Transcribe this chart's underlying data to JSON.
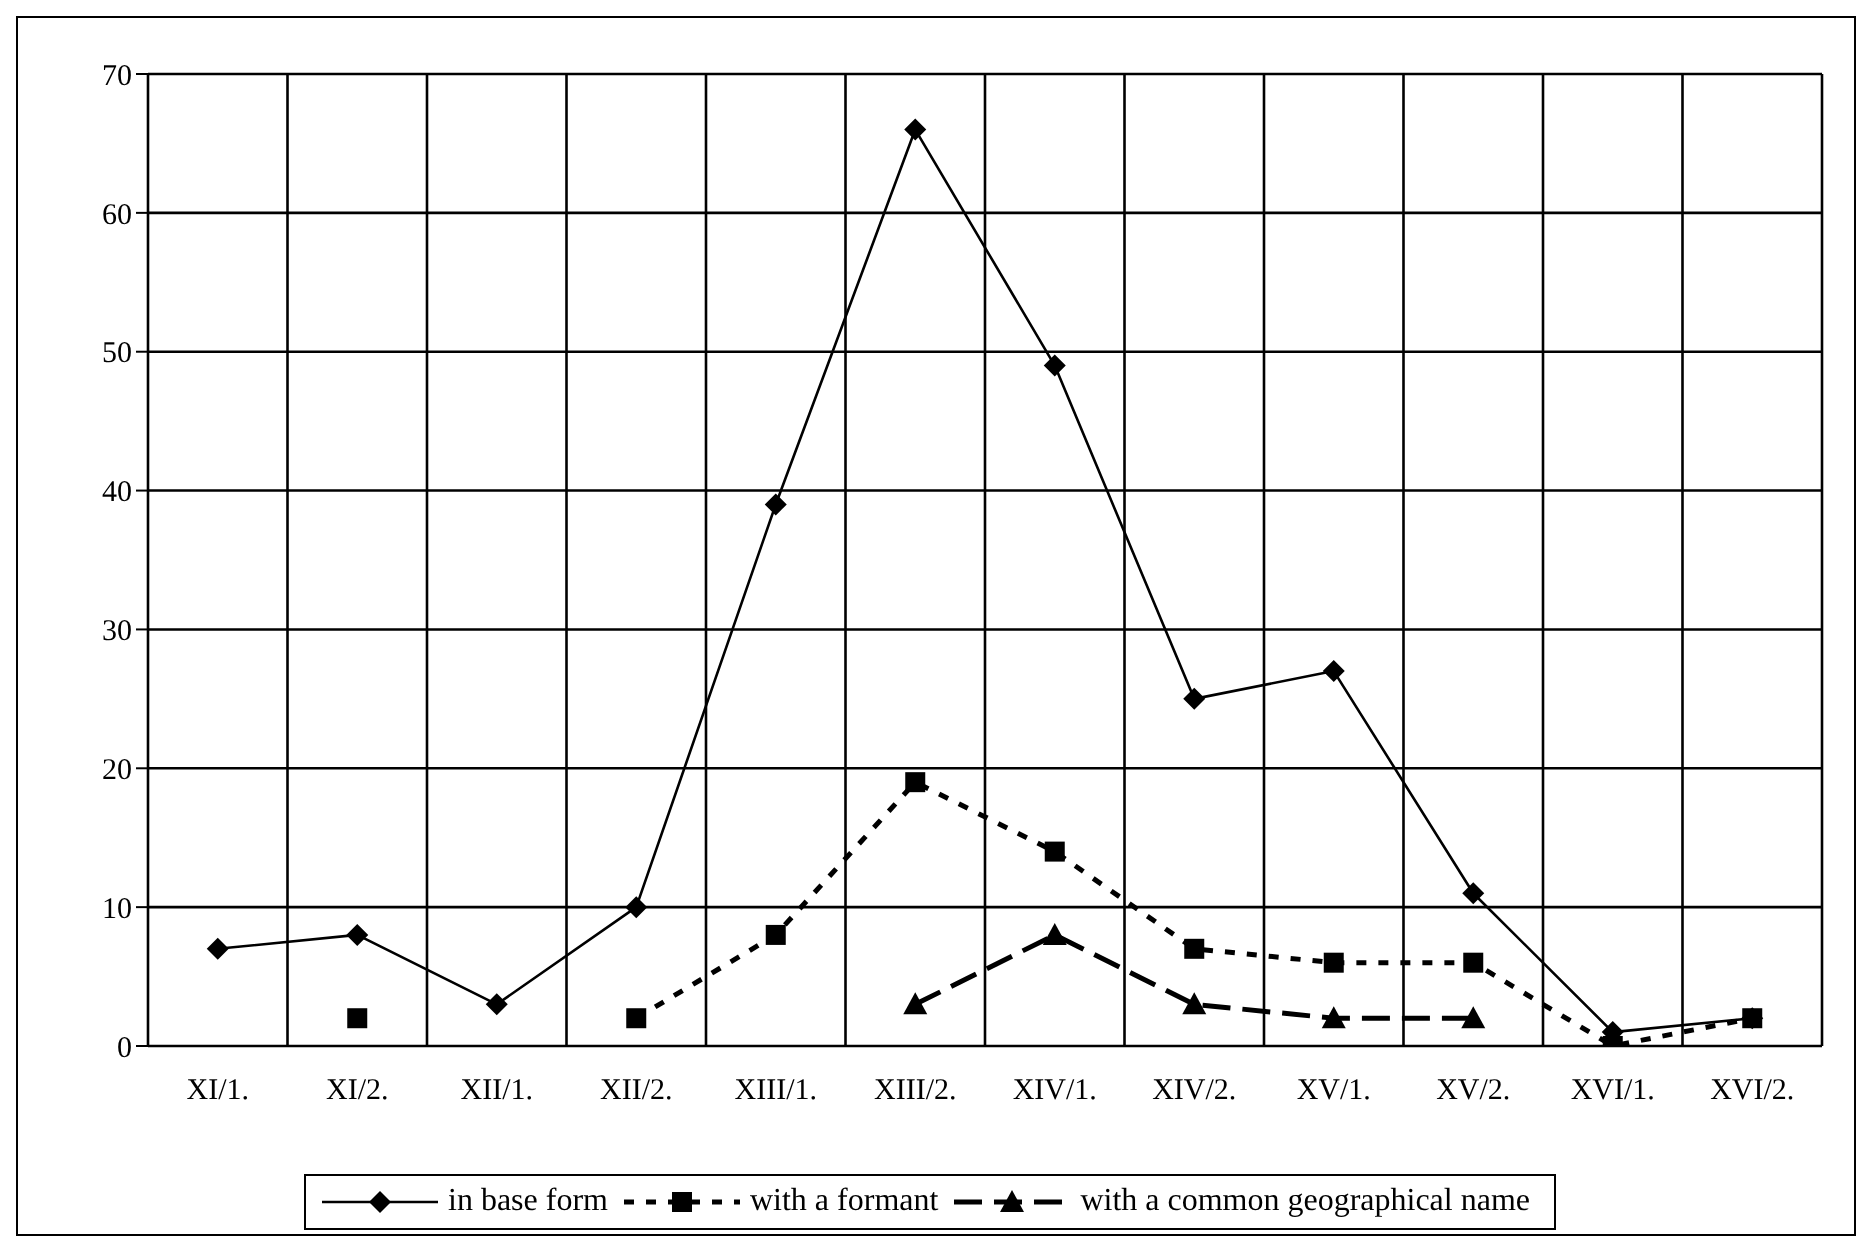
{
  "chart_data": {
    "type": "line",
    "categories": [
      "XI/1.",
      "XI/2.",
      "XII/1.",
      "XII/2.",
      "XIII/1.",
      "XIII/2.",
      "XIV/1.",
      "XIV/2.",
      "XV/1.",
      "XV/2.",
      "XVI/1.",
      "XVI/2."
    ],
    "ylim": [
      0,
      70
    ],
    "yticks": [
      0,
      10,
      20,
      30,
      40,
      50,
      60,
      70
    ],
    "grid": true,
    "legend": "bottom",
    "series": [
      {
        "name": "in base form",
        "color": "#000000",
        "marker": "diamond",
        "line_style": "solid",
        "values": [
          7,
          8,
          3,
          10,
          39,
          66,
          49,
          25,
          27,
          11,
          1,
          2
        ]
      },
      {
        "name": "with a formant",
        "color": "#000000",
        "marker": "square",
        "line_style": "dotted",
        "values": [
          null,
          2,
          null,
          2,
          8,
          19,
          14,
          7,
          6,
          6,
          0,
          2
        ]
      },
      {
        "name": "with a common geographical name",
        "color": "#000000",
        "marker": "triangle",
        "line_style": "dashed",
        "values": [
          null,
          null,
          null,
          null,
          null,
          3,
          8,
          3,
          2,
          2,
          null,
          null
        ]
      }
    ]
  }
}
